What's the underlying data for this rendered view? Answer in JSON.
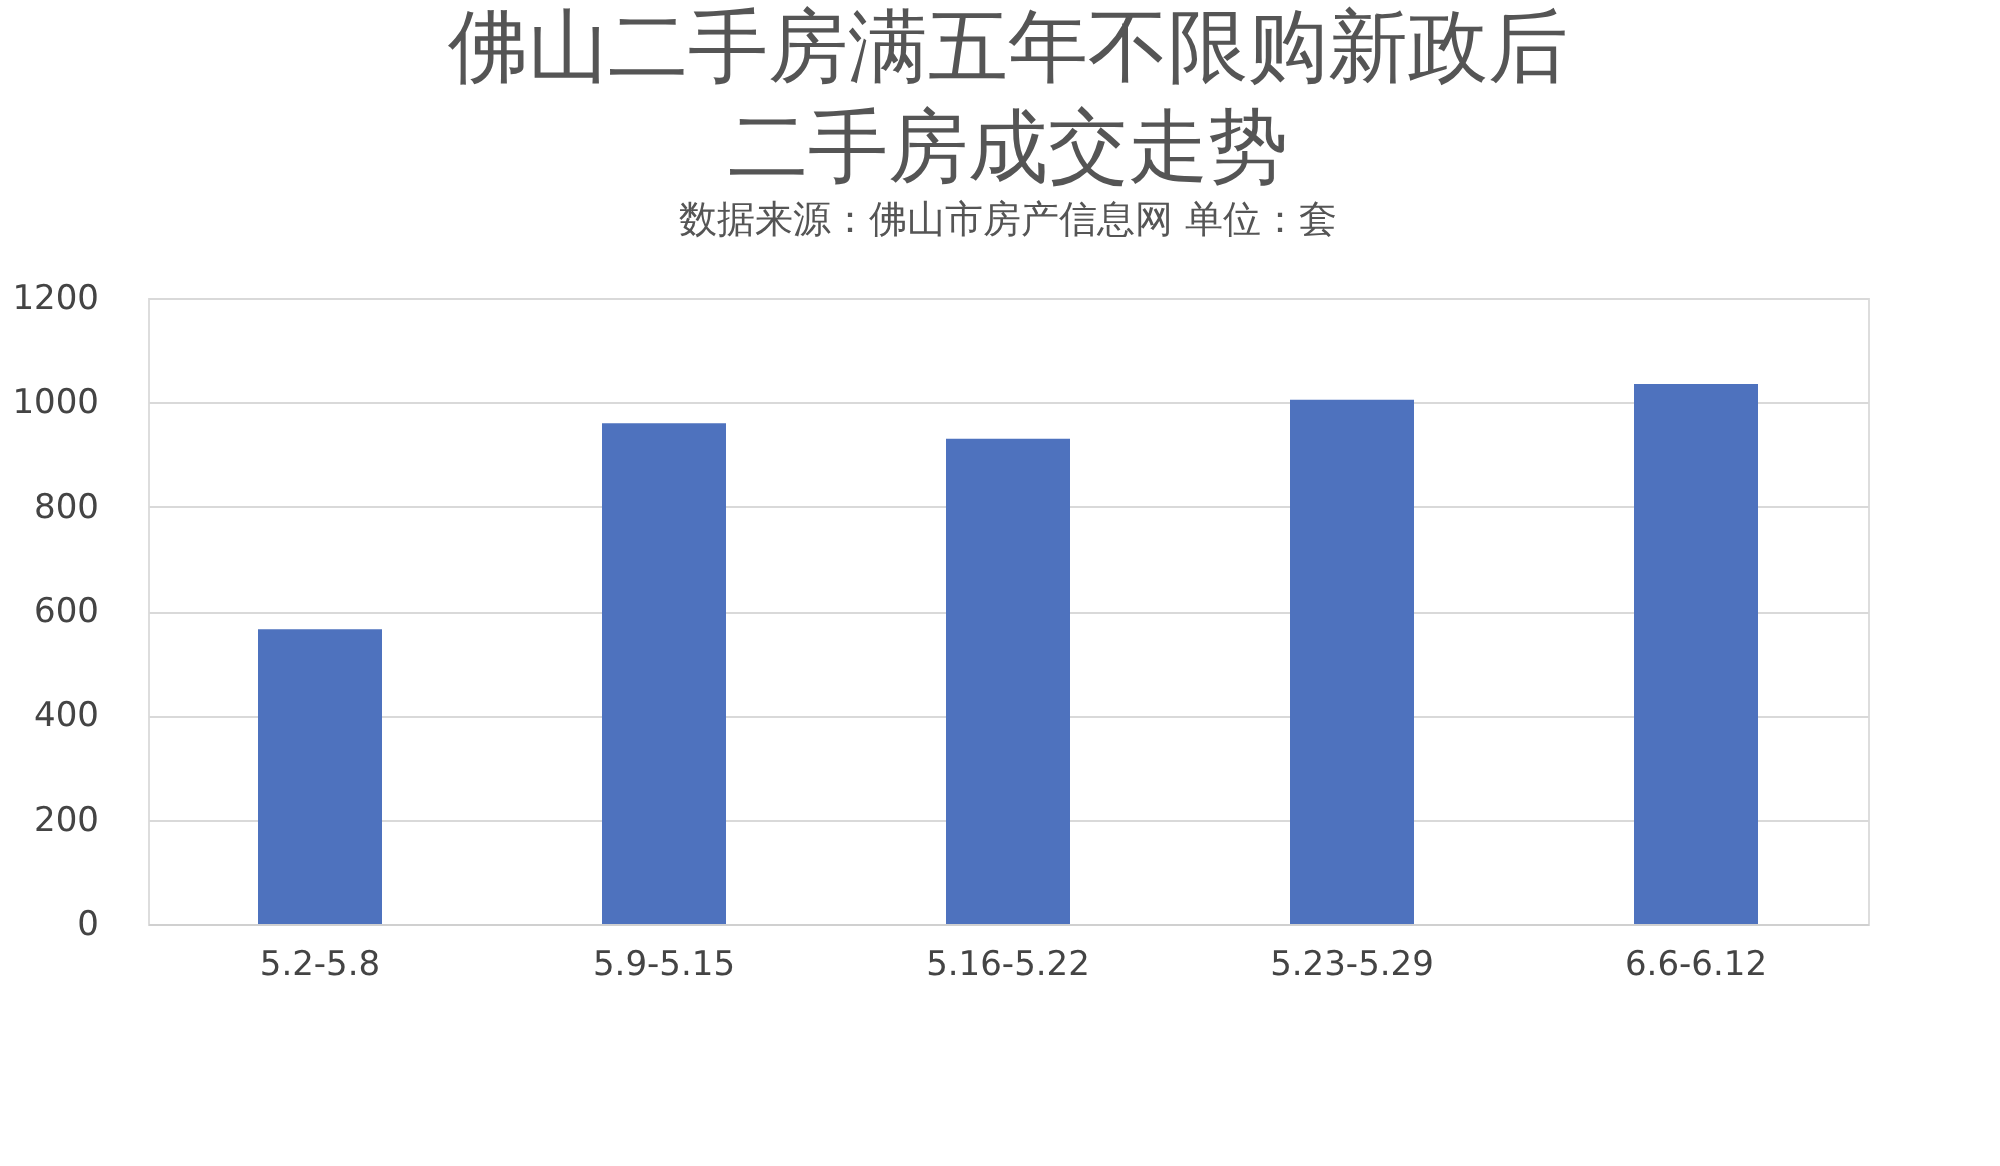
{
  "chart_data": {
    "type": "bar",
    "title": "佛山二手房满五年不限购新政后二手房成交走势",
    "subtitle": "数据来源：佛山市房产信息网 单位：套",
    "categories": [
      "5.2-5.8",
      "5.9-5.15",
      "5.16-5.22",
      "5.23-5.29",
      "6.6-6.12"
    ],
    "values": [
      565,
      960,
      930,
      1005,
      1035
    ],
    "color": "#4e72be",
    "ylim": [
      0,
      1200
    ],
    "yticks": [
      0,
      200,
      400,
      600,
      800,
      1000,
      1200
    ],
    "grid": "y"
  }
}
